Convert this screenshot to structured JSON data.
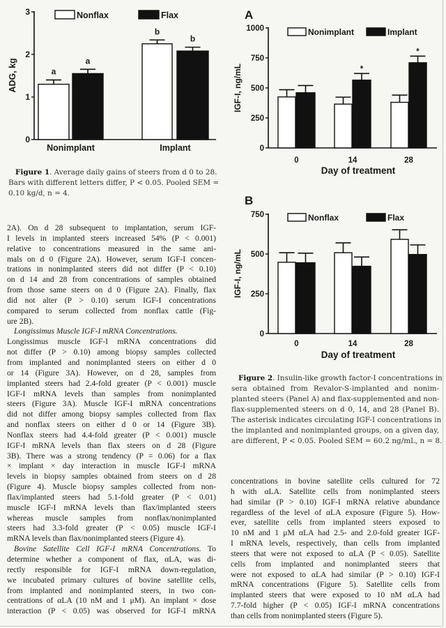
{
  "figure1": {
    "caption_label": "Figure 1",
    "caption_lines": [
      ". Average daily gains of steers from d 0 to 28.",
      "Bars with different letters differ, P < 0.05. Pooled SEM =",
      "0.10 kg/d, n = 4."
    ]
  },
  "figure2": {
    "caption_label": "Figure 2",
    "caption_lines": [
      ". Insulin-like growth factor-I concentrations in",
      "sera obtained from Revalor-S-implanted and nonim-",
      "planted steers (Panel A) and flax-supplemented and non-",
      "flax-supplemented steers on d 0, 14, and 28 (Panel B).",
      "The asterisk indicates circulating IGF-I concentrations in",
      "the implanted and nonimplanted groups, on a given day,",
      "are different, P < 0.05. Pooled SEM = 60.2 ng/mL, n = 8."
    ]
  },
  "chart_data": [
    {
      "type": "bar",
      "panel": "",
      "title": "",
      "categories": [
        "Nonimplant",
        "Implant"
      ],
      "xlabel": "",
      "ylabel": "ADG, kg",
      "ylim": [
        0,
        3
      ],
      "yticks": [
        "0",
        "1",
        "2",
        "3"
      ],
      "legend_position": "top",
      "series": [
        {
          "name": "Nonflax",
          "color": "#ffffff",
          "values": [
            1.3,
            2.25
          ],
          "errors": [
            0.1,
            0.09
          ],
          "annotations": [
            "a",
            "b"
          ]
        },
        {
          "name": "Flax",
          "color": "#111111",
          "values": [
            1.55,
            2.08
          ],
          "errors": [
            0.1,
            0.09
          ],
          "annotations": [
            "a",
            "b"
          ]
        }
      ]
    },
    {
      "type": "bar",
      "panel": "A",
      "categories": [
        "0",
        "14",
        "28"
      ],
      "xlabel": "Day of treatment",
      "ylabel": "IGF-I, ng/mL",
      "ylim": [
        0,
        1000
      ],
      "yticks": [
        "0",
        "250",
        "500",
        "750",
        "1000"
      ],
      "legend_position": "top",
      "series": [
        {
          "name": "Nonimplant",
          "color": "#ffffff",
          "values": [
            425,
            365,
            380
          ],
          "errors": [
            60,
            58,
            60
          ],
          "annotations": [
            "",
            "",
            ""
          ]
        },
        {
          "name": "Implant",
          "color": "#111111",
          "values": [
            460,
            565,
            710
          ],
          "errors": [
            60,
            55,
            55
          ],
          "annotations": [
            "",
            "*",
            "*"
          ]
        }
      ]
    },
    {
      "type": "bar",
      "panel": "B",
      "categories": [
        "0",
        "14",
        "28"
      ],
      "xlabel": "Day of treatment",
      "ylabel": "IGF-I, ng/mL",
      "ylim": [
        0,
        750
      ],
      "yticks": [
        "0",
        "250",
        "500",
        "750"
      ],
      "legend_position": "top",
      "series": [
        {
          "name": "Nonflax",
          "color": "#ffffff",
          "values": [
            448,
            508,
            592
          ],
          "errors": [
            60,
            62,
            60
          ],
          "annotations": [
            "",
            "",
            ""
          ]
        },
        {
          "name": "Flax",
          "color": "#111111",
          "values": [
            445,
            423,
            497
          ],
          "errors": [
            60,
            58,
            60
          ],
          "annotations": [
            "",
            "",
            ""
          ]
        }
      ]
    }
  ],
  "left_column": [
    {
      "ends": true,
      "lines": [
        "2A). On d 28 subsequent to implantation, serum IGF-",
        "I levels in implanted steers increased 54% (P < 0.001)",
        "relative to concentrations measured in the same ani-",
        "mals on d 0 (Figure 2A). However, serum IGF-I concen-",
        "trations in nonimplanted steers did not differ (P < 0.10)",
        "on d 14 and 28 from concentrations of samples obtained",
        "from those same steers on d 0 (Figure 2A). Finally, flax",
        "did not alter (P > 0.10) serum IGF-I concentrations",
        "compared to serum collected from nonflax cattle (Fig-",
        "ure 2B)."
      ]
    },
    {
      "ends": true,
      "heading": "Longissimus Muscle IGF-I mRNA Concentrations.",
      "lines": [
        "",
        "Longissimus muscle IGF-I mRNA concentrations did",
        "not differ (P > 0.10) among biopsy samples collected",
        "from implanted and nonimplanted steers on either d 0",
        "or 14 (Figure 3A). However, on d 28, samples from",
        "implanted steers had 2.4-fold greater (P < 0.001) muscle",
        "IGF-I mRNA levels than samples from nonimplanted",
        "steers (Figure 3A). Muscle IGF-I mRNA concentrations",
        "did not differ among biopsy samples collected from flax",
        "and nonflax steers on either d 0 or 14 (Figure 3B).",
        "Nonflax steers had 4.4-fold greater (P < 0.001) muscle",
        "IGF-I mRNA levels than flax steers on d 28 (Figure",
        "3B). There was a strong tendency (P = 0.06) for a flax",
        "× implant × day interaction in muscle IGF-I mRNA",
        "levels in biopsy samples obtained from steers on d 28",
        "(Figure 4). Muscle biopsy samples collected from non-",
        "flax/implanted steers had 5.1-fold greater (P < 0.01)",
        "muscle IGF-I mRNA levels than flax/implanted steers",
        "whereas muscle samples from nonflax/nonimplanted",
        "steers had 3.3-fold greater (P < 0.05) muscle IGF-I",
        "mRNA levels than flax/nonimplanted steers (Figure 4)."
      ]
    },
    {
      "ends": false,
      "heading": "Bovine Satellite Cell IGF-I mRNA Concentrations.",
      "lines": [
        " To",
        "determine whether a component of flax, αLA, was di-",
        "rectly responsible for IGF-I mRNA down-regulation,",
        "we incubated primary cultures of bovine satellite cells,",
        "from implanted and nonimplanted steers, in two con-",
        "centrations of αLA (10 nM and 1 μM). An implant × dose",
        "interaction (P < 0.05) was observed for IGF-I mRNA"
      ]
    }
  ],
  "right_column": [
    {
      "ends": true,
      "lines": [
        "concentrations in bovine satellite cells cultured for 72",
        "h with αLA. Satellite cells from nonimplanted steers",
        "had similar (P > 0.10) IGF-I mRNA relative abundance",
        "regardless of the level of αLA exposure (Figure 5). How-",
        "ever, satellite cells from implanted steers exposed to",
        "10 nM and 1 μM αLA had 2.5- and 2.0-fold greater IGF-",
        "I mRNA levels, respectively, than cells from implanted",
        "steers that were not exposed to αLA (P < 0.05). Satellite",
        "cells from implanted and nonimplanted steers that",
        "were not exposed to αLA had similar (P > 0.10) IGF-I",
        "mRNA concentrations (Figure 5). Satellite cells from",
        "implanted steers that were exposed to 10 nM αLA had",
        "7.7-fold higher (P < 0.05) IGF-I mRNA concentrations",
        "than cells from nonimplanted steers (Figure 5)."
      ]
    }
  ]
}
